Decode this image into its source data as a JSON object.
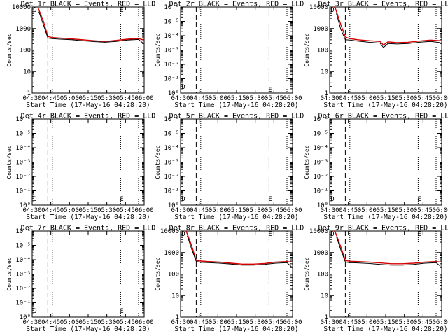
{
  "figure": {
    "xlabel": "Start Time (17-May-16 04:28:20)",
    "ylabel": "Counts/sec",
    "colors": {
      "events": "#000000",
      "lld": "#d40000",
      "axes": "#000000",
      "background": "#ffffff"
    },
    "marker_labels": {
      "start": "D",
      "end": "E"
    }
  },
  "chart_data": [
    {
      "title": "Det 1r BLACK = Events, RED = LLD",
      "type": "line",
      "yscale": "log",
      "ylim": [
        1,
        10000
      ],
      "xlim": [
        0,
        100
      ],
      "xticks": [
        "04:30",
        "04:45",
        "05:00",
        "05:15",
        "05:30",
        "05:45",
        "06:00"
      ],
      "yticks": [
        "1",
        "10",
        "100",
        "1000",
        "10000"
      ],
      "vlines": {
        "dashed": 14,
        "dotted": [
          18,
          79,
          95
        ]
      },
      "markers": [
        {
          "label": "D",
          "x": 2.5,
          "y": 8000
        },
        {
          "label": "E",
          "x": 80,
          "y": 8000
        }
      ],
      "series": [
        {
          "color": "red",
          "x": [
            0,
            5,
            10,
            14,
            18,
            25,
            35,
            45,
            55,
            65,
            75,
            85,
            95,
            99
          ],
          "y": [
            15000,
            10000,
            2200,
            420,
            380,
            360,
            330,
            300,
            270,
            250,
            280,
            320,
            340,
            300
          ]
        },
        {
          "color": "black",
          "x": [
            6,
            10,
            14,
            18,
            25,
            35,
            45,
            55,
            65,
            75,
            85,
            95,
            99
          ],
          "y": [
            6000,
            1500,
            360,
            340,
            320,
            300,
            270,
            245,
            230,
            250,
            290,
            310,
            210
          ]
        }
      ]
    },
    {
      "title": "Det 2r BLACK = Events, RED = LLD",
      "type": "line",
      "yscale": "log",
      "ylim": [
        1,
        1000000
      ],
      "xlim": [
        0,
        100
      ],
      "xticks": [
        "04:30",
        "04:45",
        "05:00",
        "05:15",
        "05:30",
        "05:45",
        "06:00"
      ],
      "yticks": [
        "10⁰",
        "10⁻¹",
        "10⁻²",
        "10⁻³",
        "10⁻⁴",
        "10⁻⁵",
        "10⁻⁶"
      ],
      "vlines": {
        "dashed": 14,
        "dotted": [
          18,
          79,
          95
        ]
      },
      "markers": [
        {
          "label": "D",
          "x": 2.5,
          "y": 3
        },
        {
          "label": "E",
          "x": 80,
          "y": 2
        }
      ],
      "series": []
    },
    {
      "title": "Det 3r BLACK = Events, RED = LLD",
      "type": "line",
      "yscale": "log",
      "ylim": [
        1,
        10000
      ],
      "xlim": [
        0,
        100
      ],
      "xticks": [
        "04:30",
        "04:45",
        "05:00",
        "05:15",
        "05:30",
        "05:45",
        "06:00"
      ],
      "yticks": [
        "1",
        "10",
        "100",
        "1000",
        "10000"
      ],
      "vlines": {
        "dashed": 14,
        "dotted": [
          18,
          79,
          95
        ]
      },
      "markers": [
        {
          "label": "D",
          "x": 2.5,
          "y": 8000
        },
        {
          "label": "E",
          "x": 80,
          "y": 8000
        }
      ],
      "series": [
        {
          "color": "red",
          "x": [
            0,
            5,
            10,
            14,
            18,
            25,
            35,
            45,
            48,
            52,
            60,
            70,
            80,
            90,
            99
          ],
          "y": [
            15000,
            9000,
            1500,
            400,
            340,
            300,
            270,
            250,
            170,
            240,
            220,
            230,
            260,
            290,
            270
          ]
        },
        {
          "color": "black",
          "x": [
            6,
            10,
            14,
            18,
            25,
            35,
            45,
            48,
            52,
            60,
            70,
            80,
            90,
            99
          ],
          "y": [
            5000,
            900,
            300,
            290,
            260,
            230,
            210,
            130,
            200,
            190,
            200,
            230,
            250,
            220
          ]
        }
      ]
    },
    {
      "title": "Det 4r BLACK = Events, RED = LLD",
      "type": "line",
      "yscale": "log",
      "ylim": [
        1,
        1000000
      ],
      "xlim": [
        0,
        100
      ],
      "xticks": [
        "04:30",
        "04:45",
        "05:00",
        "05:15",
        "05:30",
        "05:45",
        "06:00"
      ],
      "yticks": [
        "10⁰",
        "10⁻¹",
        "10⁻²",
        "10⁻³",
        "10⁻⁴",
        "10⁻⁵",
        "10⁻⁶"
      ],
      "vlines": {
        "dashed": 14,
        "dotted": [
          18,
          79,
          95
        ]
      },
      "markers": [
        {
          "label": "D",
          "x": 2.5,
          "y": 3
        },
        {
          "label": "E",
          "x": 80,
          "y": 3
        }
      ],
      "series": []
    },
    {
      "title": "Det 5r BLACK = Events, RED = LLD",
      "type": "line",
      "yscale": "log",
      "ylim": [
        1,
        1000000
      ],
      "xlim": [
        0,
        100
      ],
      "xticks": [
        "04:30",
        "04:45",
        "05:00",
        "05:15",
        "05:30",
        "05:45",
        "06:00"
      ],
      "yticks": [
        "10⁰",
        "10⁻¹",
        "10⁻²",
        "10⁻³",
        "10⁻⁴",
        "10⁻⁵",
        "10⁻⁶"
      ],
      "vlines": {
        "dashed": 14,
        "dotted": [
          18,
          79,
          95
        ]
      },
      "markers": [
        {
          "label": "D",
          "x": 2.5,
          "y": 3
        },
        {
          "label": "E",
          "x": 80,
          "y": 3
        }
      ],
      "series": []
    },
    {
      "title": "Det 6r BLACK = Events, RED = LLD",
      "type": "line",
      "yscale": "log",
      "ylim": [
        1,
        1000000
      ],
      "xlim": [
        0,
        100
      ],
      "xticks": [
        "04:30",
        "04:45",
        "05:00",
        "05:15",
        "05:30",
        "05:45",
        "06:00"
      ],
      "yticks": [
        "10⁰",
        "10⁻¹",
        "10⁻²",
        "10⁻³",
        "10⁻⁴",
        "10⁻⁵",
        "10⁻⁶"
      ],
      "vlines": {
        "dashed": 14,
        "dotted": [
          18,
          79,
          95
        ]
      },
      "markers": [
        {
          "label": "D",
          "x": 2.5,
          "y": 3
        },
        {
          "label": "E",
          "x": 80,
          "y": 3
        }
      ],
      "series": []
    },
    {
      "title": "Det 7r BLACK = Events, RED = LLD",
      "type": "line",
      "yscale": "log",
      "ylim": [
        1,
        1000000
      ],
      "xlim": [
        0,
        100
      ],
      "xticks": [
        "04:30",
        "04:45",
        "05:00",
        "05:15",
        "05:30",
        "05:45",
        "06:00"
      ],
      "yticks": [
        "10⁰",
        "10⁻¹",
        "10⁻²",
        "10⁻³",
        "10⁻⁴",
        "10⁻⁵",
        "10⁻⁶"
      ],
      "vlines": {
        "dashed": 14,
        "dotted": [
          18,
          79,
          95
        ]
      },
      "markers": [
        {
          "label": "D",
          "x": 2.5,
          "y": 3
        },
        {
          "label": "E",
          "x": 80,
          "y": 3
        }
      ],
      "series": []
    },
    {
      "title": "Det 8r BLACK = Events, RED = LLD",
      "type": "line",
      "yscale": "log",
      "ylim": [
        1,
        10000
      ],
      "xlim": [
        0,
        100
      ],
      "xticks": [
        "04:30",
        "04:45",
        "05:00",
        "05:15",
        "05:30",
        "05:45",
        "06:00"
      ],
      "yticks": [
        "1",
        "10",
        "100",
        "1000",
        "10000"
      ],
      "vlines": {
        "dashed": 14,
        "dotted": [
          18,
          79,
          95
        ]
      },
      "markers": [
        {
          "label": "D",
          "x": 2.5,
          "y": 8000
        },
        {
          "label": "E",
          "x": 80,
          "y": 8000
        }
      ],
      "series": [
        {
          "color": "red",
          "x": [
            0,
            5,
            10,
            14,
            18,
            25,
            35,
            45,
            55,
            65,
            75,
            85,
            95,
            99
          ],
          "y": [
            15000,
            10000,
            2000,
            420,
            400,
            380,
            360,
            320,
            290,
            290,
            310,
            360,
            380,
            360
          ]
        },
        {
          "color": "black",
          "x": [
            6,
            10,
            14,
            18,
            25,
            35,
            45,
            55,
            65,
            75,
            85,
            95,
            99
          ],
          "y": [
            6000,
            1400,
            380,
            350,
            340,
            320,
            290,
            260,
            260,
            280,
            320,
            340,
            220
          ]
        }
      ]
    },
    {
      "title": "Det 9r BLACK = Events, RED = LLD",
      "type": "line",
      "yscale": "log",
      "ylim": [
        1,
        10000
      ],
      "xlim": [
        0,
        100
      ],
      "xticks": [
        "04:30",
        "04:45",
        "05:00",
        "05:15",
        "05:30",
        "05:45",
        "06:00"
      ],
      "yticks": [
        "1",
        "10",
        "100",
        "1000",
        "10000"
      ],
      "vlines": {
        "dashed": 14,
        "dotted": [
          18,
          79,
          95
        ]
      },
      "markers": [
        {
          "label": "D",
          "x": 2.5,
          "y": 8000
        },
        {
          "label": "E",
          "x": 80,
          "y": 8000
        }
      ],
      "series": [
        {
          "color": "red",
          "x": [
            0,
            5,
            10,
            14,
            18,
            25,
            35,
            45,
            55,
            65,
            75,
            85,
            95,
            99
          ],
          "y": [
            15000,
            9000,
            1800,
            420,
            390,
            380,
            360,
            330,
            300,
            300,
            320,
            360,
            380,
            360
          ]
        },
        {
          "color": "black",
          "x": [
            6,
            10,
            14,
            18,
            25,
            35,
            45,
            55,
            65,
            75,
            85,
            95,
            99
          ],
          "y": [
            5500,
            1300,
            360,
            340,
            330,
            310,
            280,
            260,
            260,
            280,
            320,
            340,
            230
          ]
        }
      ]
    }
  ]
}
